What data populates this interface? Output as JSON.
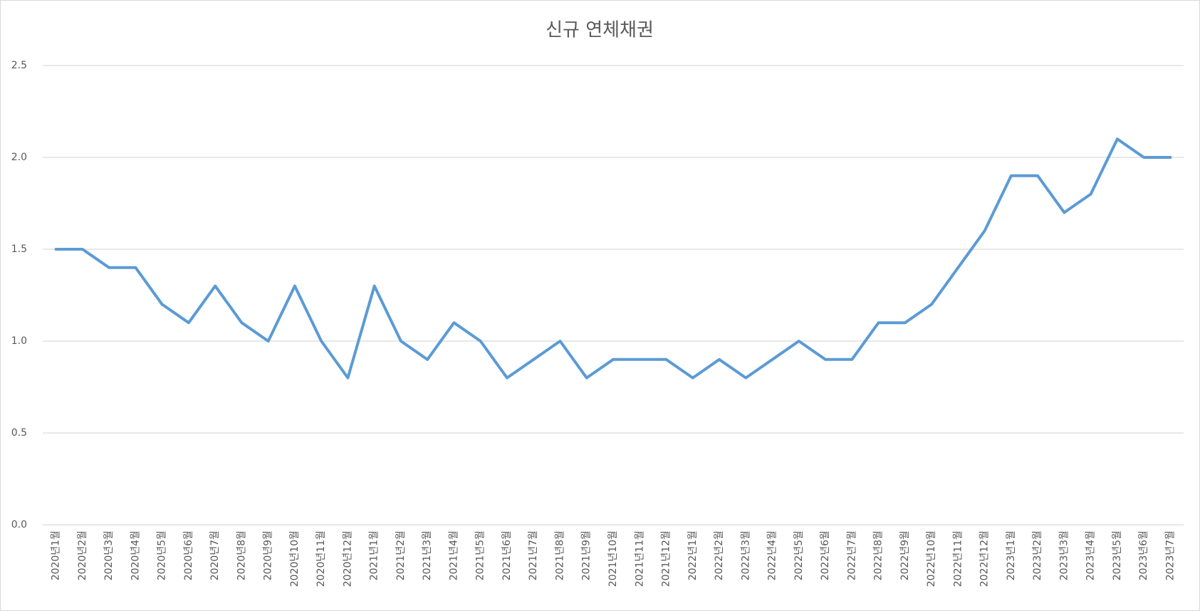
{
  "chart_data": {
    "type": "line",
    "title": "신규 연체채권",
    "categories": [
      "2020년1월",
      "2020년2월",
      "2020년3월",
      "2020년4월",
      "2020년5월",
      "2020년6월",
      "2020년7월",
      "2020년8월",
      "2020년9월",
      "2020년10월",
      "2020년11월",
      "2020년12월",
      "2021년1월",
      "2021년2월",
      "2021년3월",
      "2021년4월",
      "2021년5월",
      "2021년6월",
      "2021년7월",
      "2021년8월",
      "2021년9월",
      "2021년10월",
      "2021년11월",
      "2021년12월",
      "2022년1월",
      "2022년2월",
      "2022년3월",
      "2022년4월",
      "2022년5월",
      "2022년6월",
      "2022년7월",
      "2022년8월",
      "2022년9월",
      "2022년10월",
      "2022년11월",
      "2022년12월",
      "2023년1월",
      "2023년2월",
      "2023년3월",
      "2023년4월",
      "2023년5월",
      "2023년6월",
      "2023년7월"
    ],
    "values": [
      1.5,
      1.5,
      1.4,
      1.4,
      1.2,
      1.1,
      1.3,
      1.1,
      1.0,
      1.3,
      1.0,
      0.8,
      1.3,
      1.0,
      0.9,
      1.1,
      1.0,
      0.8,
      0.9,
      1.0,
      0.8,
      0.9,
      0.9,
      0.9,
      0.8,
      0.9,
      0.8,
      0.9,
      1.0,
      0.9,
      0.9,
      1.1,
      1.1,
      1.2,
      1.4,
      1.6,
      1.9,
      1.9,
      1.7,
      1.8,
      2.1,
      2.0,
      2.0
    ],
    "color": "#5b9bd5",
    "ylim": [
      0,
      2.5
    ],
    "yticks": [
      {
        "value": 0,
        "label": "0.0"
      },
      0.5,
      {
        "value": 1,
        "label": "1.0"
      },
      1.5,
      {
        "value": 2,
        "label": "2.0"
      },
      2.5
    ],
    "grid": true
  }
}
